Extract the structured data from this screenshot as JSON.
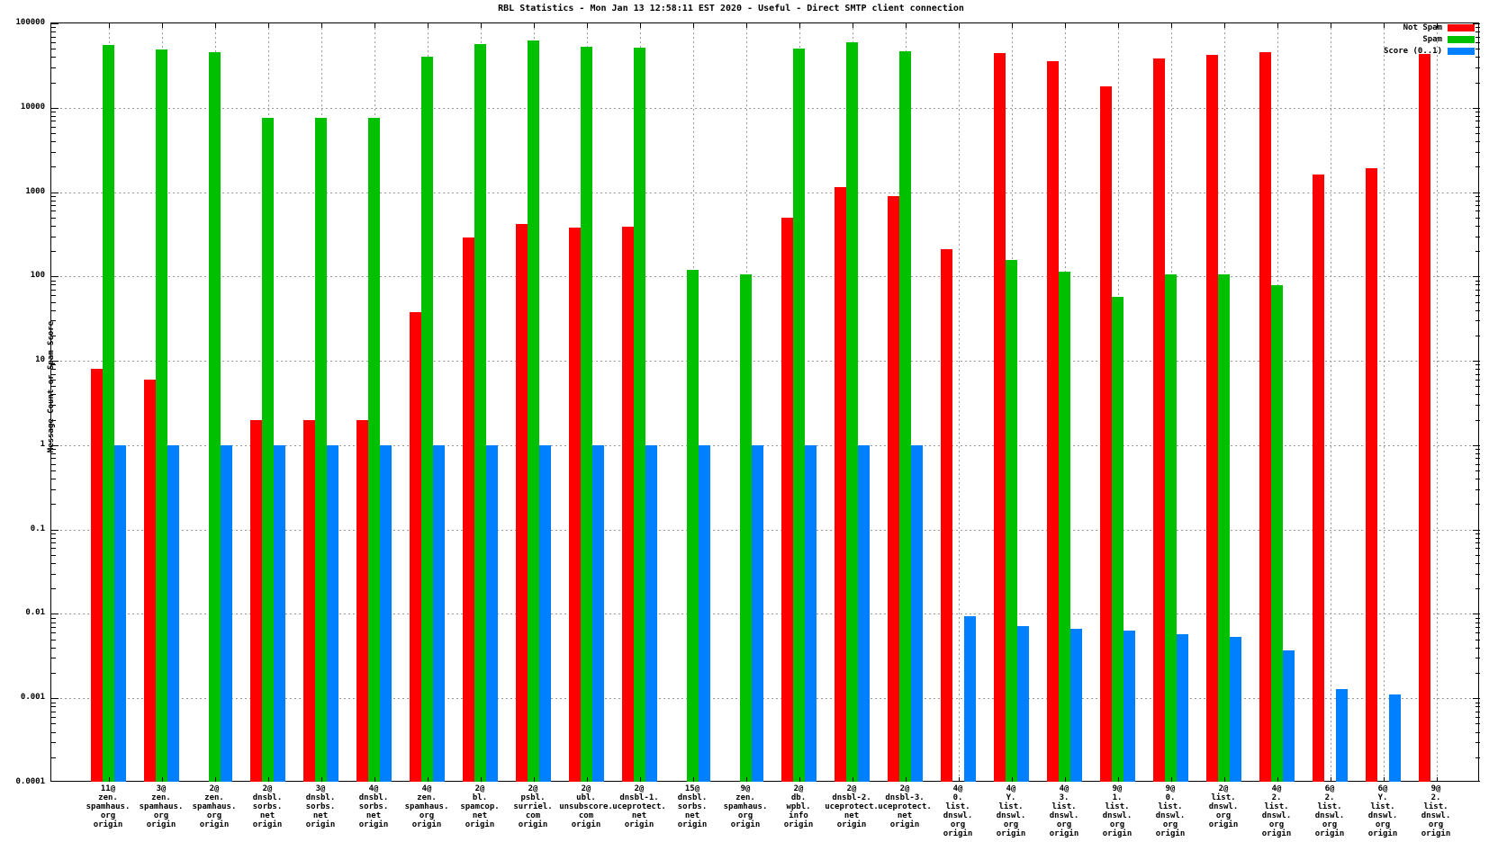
{
  "chart_data": {
    "type": "bar",
    "title": "RBL Statistics - Mon Jan 13 12:58:11 EST 2020 - Useful - Direct SMTP client connection",
    "ylabel": "Message Count or Spam Score",
    "xlabel": "",
    "yscale": "log",
    "ylim": [
      0.0001,
      100000
    ],
    "ytick_labels": [
      "100000",
      "10000",
      "1000",
      "100",
      "10",
      "1",
      "0.1",
      "0.01",
      "0.001",
      "0.0001"
    ],
    "grid": true,
    "legend_position": "top-right-inside",
    "categories": [
      [
        "11@",
        "zen.",
        "spamhaus.",
        "org",
        "origin"
      ],
      [
        "3@",
        "zen.",
        "spamhaus.",
        "org",
        "origin"
      ],
      [
        "2@",
        "zen.",
        "spamhaus.",
        "org",
        "origin"
      ],
      [
        "2@",
        "dnsbl.",
        "sorbs.",
        "net",
        "origin"
      ],
      [
        "3@",
        "dnsbl.",
        "sorbs.",
        "net",
        "origin"
      ],
      [
        "4@",
        "dnsbl.",
        "sorbs.",
        "net",
        "origin"
      ],
      [
        "4@",
        "zen.",
        "spamhaus.",
        "org",
        "origin"
      ],
      [
        "2@",
        "bl.",
        "spamcop.",
        "net",
        "origin"
      ],
      [
        "2@",
        "psbl.",
        "surriel.",
        "com",
        "origin"
      ],
      [
        "2@",
        "ubl.",
        "unsubscore.",
        "com",
        "origin"
      ],
      [
        "2@",
        "dnsbl-1.",
        "uceprotect.",
        "net",
        "origin"
      ],
      [
        "15@",
        "dnsbl.",
        "sorbs.",
        "net",
        "origin"
      ],
      [
        "9@",
        "zen.",
        "spamhaus.",
        "org",
        "origin"
      ],
      [
        "2@",
        "db.",
        "wpbl.",
        "info",
        "origin"
      ],
      [
        "2@",
        "dnsbl-2.",
        "uceprotect.",
        "net",
        "origin"
      ],
      [
        "2@",
        "dnsbl-3.",
        "uceprotect.",
        "net",
        "origin"
      ],
      [
        "4@",
        "0.",
        "list.",
        "dnswl.",
        "org",
        "origin"
      ],
      [
        "4@",
        "Y.",
        "list.",
        "dnswl.",
        "org",
        "origin"
      ],
      [
        "4@",
        "3.",
        "list.",
        "dnswl.",
        "org",
        "origin"
      ],
      [
        "9@",
        "1.",
        "list.",
        "dnswl.",
        "org",
        "origin"
      ],
      [
        "9@",
        "0.",
        "list.",
        "dnswl.",
        "org",
        "origin"
      ],
      [
        "2@",
        "list.",
        "dnswl.",
        "org",
        "origin"
      ],
      [
        "4@",
        "2.",
        "list.",
        "dnswl.",
        "org",
        "origin"
      ],
      [
        "6@",
        "2.",
        "list.",
        "dnswl.",
        "org",
        "origin"
      ],
      [
        "6@",
        "Y.",
        "list.",
        "dnswl.",
        "org",
        "origin"
      ],
      [
        "9@",
        "2.",
        "list.",
        "dnswl.",
        "org",
        "origin"
      ]
    ],
    "series": [
      {
        "name": "Not Spam",
        "color": "#ff0000",
        "values": [
          8,
          6,
          null,
          2,
          2,
          2,
          38,
          290,
          420,
          380,
          390,
          null,
          null,
          500,
          1150,
          900,
          210,
          44000,
          36000,
          18000,
          38000,
          42000,
          46000,
          1600,
          1900,
          43000
        ]
      },
      {
        "name": "Spam",
        "color": "#00c000",
        "values": [
          55000,
          49000,
          46000,
          7500,
          7500,
          7500,
          40000,
          57000,
          62000,
          53000,
          52000,
          120,
          105,
          50000,
          60000,
          47000,
          null,
          155,
          115,
          58,
          105,
          107,
          78,
          null,
          null,
          null
        ]
      },
      {
        "name": "Score (0..1)",
        "color": "#0080ff",
        "values": [
          1,
          1,
          1,
          1,
          1,
          1,
          1,
          1,
          1,
          1,
          1,
          1,
          1,
          1,
          1,
          1,
          0.0095,
          0.0072,
          0.0066,
          0.0064,
          0.0058,
          0.0054,
          0.0037,
          0.0013,
          0.0011,
          null
        ]
      }
    ]
  }
}
